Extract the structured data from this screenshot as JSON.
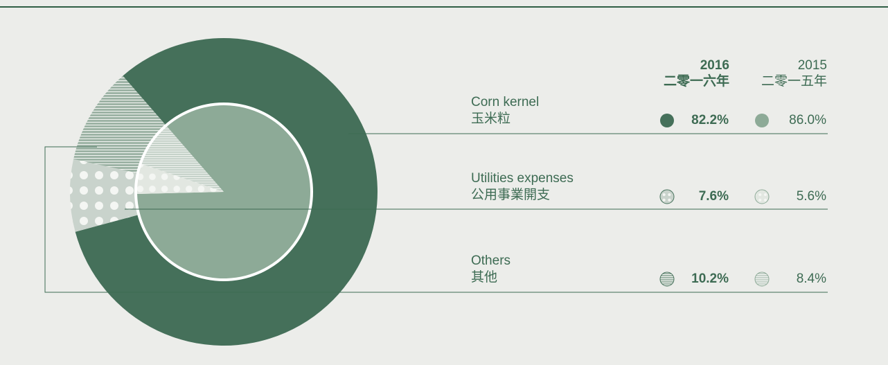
{
  "chart_data": {
    "type": "pie",
    "categories": [
      {
        "name": "Corn kernel",
        "name_zh": "玉米粒"
      },
      {
        "name": "Utilities expenses",
        "name_zh": "公用事業開支"
      },
      {
        "name": "Others",
        "name_zh": "其他"
      }
    ],
    "patterns": [
      "solid",
      "dots",
      "stripes"
    ],
    "series": [
      {
        "name": "2016",
        "name_zh": "二零一六年",
        "values": [
          82.2,
          7.6,
          10.2
        ],
        "value_labels": [
          "82.2%",
          "7.6%",
          "10.2%"
        ],
        "colors": [
          "#45705a",
          "#c9d3cc",
          "#9db3a5"
        ]
      },
      {
        "name": "2015",
        "name_zh": "二零一五年",
        "values": [
          86.0,
          5.6,
          8.4
        ],
        "value_labels": [
          "86.0%",
          "5.6%",
          "8.4%"
        ],
        "colors": [
          "#8daa97",
          "#e2e7e1",
          "#c4d1c8"
        ]
      }
    ]
  }
}
